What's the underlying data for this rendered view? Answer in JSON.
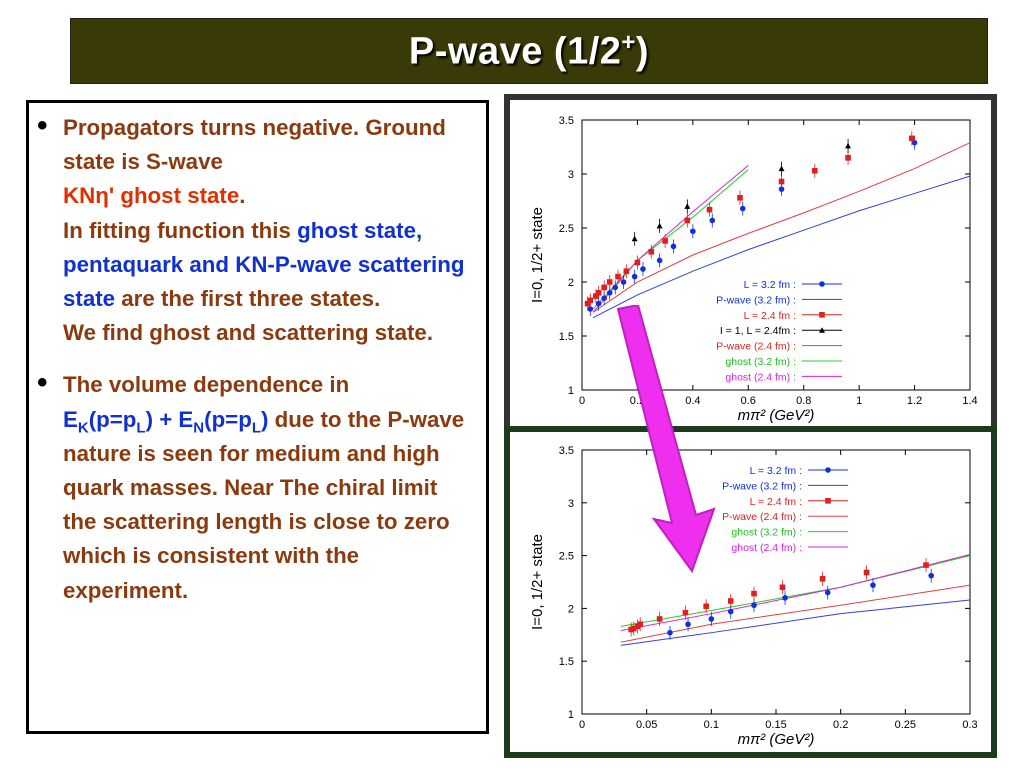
{
  "title": {
    "main": "P-wave (1/2",
    "sup": "+",
    "close": ")"
  },
  "bullets": [
    {
      "p1": "Propagators turns negative. Ground state is S-wave",
      "p2": "KNη' ghost state",
      "p3": ".",
      "p4": "In fitting function this",
      "p5": "ghost state, pentaquark  and KN-P-wave scattering state",
      "p6": "are the first three states.",
      "p7": "We find  ghost and scattering state."
    },
    {
      "p1": "The volume dependence in",
      "e1": "E",
      "k": "K",
      "p2": "(p=p",
      "l1": "L",
      "p3": ") + E",
      "n": "N",
      "p4": "(p=p",
      "l2": "L",
      "p5": ")",
      "p6": "due to the P-wave nature is seen for medium and high quark masses. Near The chiral limit the scattering length is close to zero which is  consistent with the experiment."
    }
  ],
  "chart_data": [
    {
      "type": "scatter",
      "ylabel": "I=0, 1/2+ state",
      "xlabel": "mπ² (GeV²)",
      "xlim": [
        0,
        1.4
      ],
      "ylim": [
        1,
        3.5
      ],
      "xticks": [
        "0",
        "0.2",
        "0.4",
        "0.6",
        "0.8",
        "1",
        "1.2",
        "1.4"
      ],
      "yticks": [
        "1",
        "1.5",
        "2",
        "2.5",
        "3",
        "3.5"
      ],
      "legend": [
        "L = 3.2 fm :",
        "P-wave (3.2 fm) :",
        "L = 2.4 fm :",
        "I = 1, L = 2.4fm :",
        "P-wave (2.4 fm) :",
        "ghost (3.2 fm) :",
        "ghost (2.4 fm) :"
      ],
      "legend_position": "lower-right",
      "colors": {
        "L32": "#1030e0",
        "L24": "#e02020",
        "I1": "#000000",
        "pw32": "#3040e0",
        "pw24": "#e04040",
        "gh32": "#20d020",
        "gh24": "#e020e0"
      },
      "series": [
        {
          "name": "L = 3.2 fm :",
          "x": [
            0.03,
            0.06,
            0.08,
            0.1,
            0.12,
            0.15,
            0.19,
            0.22,
            0.28,
            0.33,
            0.4,
            0.47,
            0.58,
            0.72,
            1.2
          ],
          "y": [
            1.75,
            1.8,
            1.85,
            1.9,
            1.95,
            2.0,
            2.05,
            2.12,
            2.2,
            2.33,
            2.47,
            2.57,
            2.68,
            2.86,
            3.29
          ]
        },
        {
          "name": "L = 2.4 fm :",
          "x": [
            0.02,
            0.03,
            0.05,
            0.06,
            0.08,
            0.1,
            0.13,
            0.16,
            0.2,
            0.25,
            0.3,
            0.38,
            0.46,
            0.57,
            0.72,
            0.84,
            0.96,
            1.19
          ],
          "y": [
            1.8,
            1.83,
            1.87,
            1.9,
            1.95,
            2.0,
            2.05,
            2.1,
            2.18,
            2.28,
            2.38,
            2.57,
            2.67,
            2.78,
            2.93,
            3.03,
            3.15,
            3.33
          ]
        },
        {
          "name": "I = 1, L = 2.4fm :",
          "x": [
            0.19,
            0.28,
            0.38,
            0.72,
            0.96
          ],
          "y": [
            2.4,
            2.52,
            2.7,
            3.05,
            3.26
          ]
        }
      ],
      "lines": [
        {
          "name": "P-wave (3.2 fm) :",
          "x": [
            0.04,
            0.2,
            0.4,
            0.6,
            0.8,
            1.0,
            1.2,
            1.4
          ],
          "y": [
            1.67,
            1.88,
            2.1,
            2.3,
            2.48,
            2.66,
            2.82,
            2.98
          ]
        },
        {
          "name": "P-wave (2.4 fm) :",
          "x": [
            0.04,
            0.2,
            0.4,
            0.6,
            0.8,
            1.0,
            1.2,
            1.4
          ],
          "y": [
            1.72,
            2.0,
            2.25,
            2.45,
            2.64,
            2.84,
            3.05,
            3.29
          ]
        },
        {
          "name": "ghost (3.2 fm) :",
          "x": [
            0.04,
            0.2,
            0.4,
            0.6
          ],
          "y": [
            1.75,
            2.2,
            2.6,
            3.04
          ]
        },
        {
          "name": "ghost (2.4 fm) :",
          "x": [
            0.04,
            0.2,
            0.4,
            0.6
          ],
          "y": [
            1.72,
            2.2,
            2.65,
            3.08
          ]
        }
      ]
    },
    {
      "type": "scatter",
      "ylabel": "I=0, 1/2+ state",
      "xlabel": "mπ² (GeV²)",
      "xlim": [
        0,
        0.3
      ],
      "ylim": [
        1,
        3.5
      ],
      "xticks": [
        "0",
        "0.05",
        "0.1",
        "0.15",
        "0.2",
        "0.25",
        "0.3"
      ],
      "yticks": [
        "1",
        "1.5",
        "2",
        "2.5",
        "3",
        "3.5"
      ],
      "legend": [
        "L = 3.2 fm :",
        "P-wave (3.2 fm) :",
        "L = 2.4 fm :",
        "P-wave (2.4 fm) :",
        "ghost (3.2 fm) :",
        "ghost (2.4 fm) :"
      ],
      "legend_position": "top-right",
      "series": [
        {
          "name": "L = 3.2 fm :",
          "x": [
            0.068,
            0.082,
            0.1,
            0.115,
            0.133,
            0.157,
            0.19,
            0.225,
            0.27
          ],
          "y": [
            1.77,
            1.85,
            1.9,
            1.97,
            2.03,
            2.1,
            2.15,
            2.22,
            2.31
          ]
        },
        {
          "name": "L = 2.4 fm :",
          "x": [
            0.038,
            0.04,
            0.043,
            0.045,
            0.06,
            0.08,
            0.096,
            0.115,
            0.133,
            0.155,
            0.186,
            0.22,
            0.266
          ],
          "y": [
            1.8,
            1.81,
            1.83,
            1.85,
            1.9,
            1.96,
            2.02,
            2.07,
            2.14,
            2.2,
            2.28,
            2.34,
            2.41
          ]
        }
      ],
      "lines": [
        {
          "name": "P-wave (3.2 fm) :",
          "x": [
            0.03,
            0.1,
            0.2,
            0.3
          ],
          "y": [
            1.65,
            1.77,
            1.95,
            2.08
          ]
        },
        {
          "name": "P-wave (2.4 fm) :",
          "x": [
            0.03,
            0.1,
            0.2,
            0.3
          ],
          "y": [
            1.68,
            1.85,
            2.03,
            2.22
          ]
        },
        {
          "name": "ghost (3.2 fm) :",
          "x": [
            0.03,
            0.1,
            0.2,
            0.3
          ],
          "y": [
            1.83,
            1.98,
            2.2,
            2.5
          ]
        },
        {
          "name": "ghost (2.4 fm) :",
          "x": [
            0.03,
            0.1,
            0.2,
            0.3
          ],
          "y": [
            1.79,
            1.95,
            2.2,
            2.51
          ]
        }
      ]
    }
  ],
  "arrow": {
    "color": "#ee30ee"
  }
}
